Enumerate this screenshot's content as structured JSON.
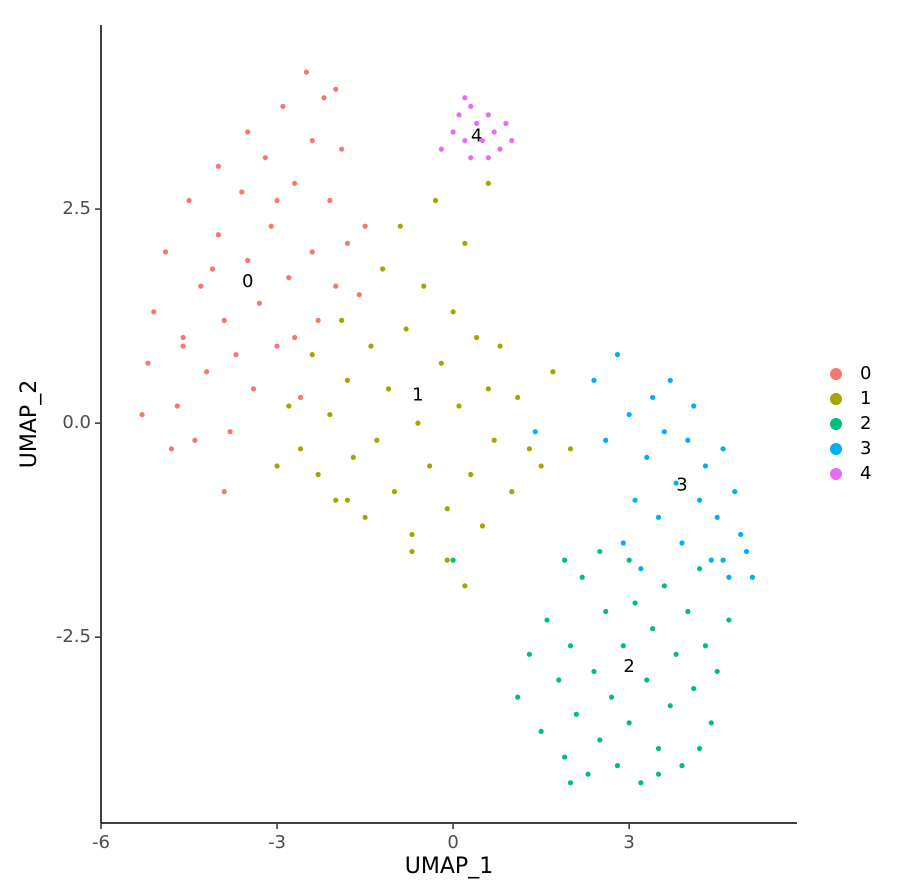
{
  "chart_data": {
    "type": "scatter",
    "xlabel": "UMAP_1",
    "ylabel": "UMAP_2",
    "xlim": [
      -6,
      5.86
    ],
    "ylim": [
      -4.67,
      4.65
    ],
    "xticks": [
      -6,
      -3,
      0,
      3
    ],
    "yticks": [
      -2.5,
      {
        "value": 0,
        "label": "0.0"
      },
      2.5
    ],
    "legend": "right",
    "series": [
      {
        "name": "0",
        "color": "#F8766D",
        "x": [
          -5.2,
          -5.1,
          -4.9,
          -4.7,
          -4.6,
          -4.5,
          -4.4,
          -4.3,
          -4.2,
          -4.0,
          -4.0,
          -3.9,
          -3.8,
          -3.7,
          -3.6,
          -3.5,
          -3.5,
          -3.4,
          -3.3,
          -3.2,
          -3.1,
          -3.0,
          -2.9,
          -2.8,
          -2.7,
          -2.6,
          -2.5,
          -2.4,
          -2.4,
          -2.3,
          -2.2,
          -2.1,
          -2.0,
          -1.9,
          -1.8,
          -1.6,
          -1.5,
          -5.3,
          -4.8,
          -3.9,
          -2.0,
          -4.1,
          -3.0,
          -2.7,
          -4.6
        ],
        "y": [
          0.7,
          1.3,
          2.0,
          0.2,
          1.0,
          2.6,
          -0.2,
          1.6,
          0.6,
          3.0,
          2.2,
          1.2,
          -0.1,
          0.8,
          2.7,
          3.4,
          1.9,
          0.4,
          1.4,
          3.1,
          2.3,
          0.9,
          3.7,
          1.7,
          2.8,
          0.3,
          4.1,
          3.3,
          2.0,
          1.2,
          3.8,
          2.6,
          1.6,
          3.2,
          2.1,
          1.5,
          2.3,
          0.1,
          -0.3,
          -0.8,
          3.9,
          1.8,
          2.6,
          1.0,
          0.9
        ]
      },
      {
        "name": "1",
        "color": "#A3A500",
        "x": [
          -3.0,
          -2.8,
          -2.6,
          -2.4,
          -2.3,
          -2.1,
          -2.0,
          -1.9,
          -1.8,
          -1.7,
          -1.5,
          -1.4,
          -1.3,
          -1.2,
          -1.1,
          -1.0,
          -0.9,
          -0.8,
          -0.7,
          -0.6,
          -0.5,
          -0.4,
          -0.3,
          -0.2,
          -0.1,
          0.0,
          0.1,
          0.2,
          0.3,
          0.4,
          0.5,
          0.6,
          0.7,
          0.8,
          1.0,
          1.1,
          1.3,
          1.5,
          1.7,
          2.0,
          -0.7,
          -0.1,
          0.2,
          -1.8,
          0.6
        ],
        "y": [
          -0.5,
          0.2,
          -0.3,
          0.8,
          -0.6,
          0.1,
          -0.9,
          1.2,
          0.5,
          -0.4,
          -1.1,
          0.9,
          -0.2,
          1.8,
          0.4,
          -0.8,
          2.3,
          1.1,
          -1.3,
          0.0,
          1.6,
          -0.5,
          2.6,
          0.7,
          -1.0,
          1.3,
          0.2,
          2.1,
          -0.6,
          1.0,
          -1.2,
          0.4,
          -0.2,
          0.9,
          -0.8,
          0.3,
          -0.3,
          -0.5,
          0.6,
          -0.3,
          -1.5,
          -1.6,
          -1.9,
          -0.9,
          2.8
        ]
      },
      {
        "name": "2",
        "color": "#00BF7D",
        "x": [
          1.1,
          1.3,
          1.5,
          1.6,
          1.8,
          1.9,
          2.0,
          2.1,
          2.2,
          2.3,
          2.4,
          2.5,
          2.6,
          2.7,
          2.8,
          2.9,
          3.0,
          3.0,
          3.1,
          3.2,
          3.3,
          3.4,
          3.5,
          3.6,
          3.7,
          3.8,
          3.9,
          4.0,
          4.1,
          4.2,
          4.3,
          4.4,
          4.5,
          4.7,
          2.5,
          1.9,
          0.0,
          3.5,
          2.0,
          4.2
        ],
        "y": [
          -3.2,
          -2.7,
          -3.6,
          -2.3,
          -3.0,
          -3.9,
          -2.6,
          -3.4,
          -1.8,
          -4.1,
          -2.9,
          -3.7,
          -2.2,
          -3.2,
          -4.0,
          -2.6,
          -1.6,
          -3.5,
          -2.1,
          -4.2,
          -3.0,
          -2.4,
          -3.8,
          -1.9,
          -3.3,
          -2.7,
          -4.0,
          -2.2,
          -3.1,
          -1.7,
          -2.6,
          -3.5,
          -2.9,
          -2.3,
          -1.5,
          -1.6,
          -1.6,
          -4.1,
          -4.2,
          -3.8
        ]
      },
      {
        "name": "3",
        "color": "#00B0F6",
        "x": [
          2.4,
          2.6,
          2.8,
          3.0,
          3.1,
          3.3,
          3.4,
          3.5,
          3.6,
          3.7,
          3.8,
          3.9,
          4.0,
          4.1,
          4.2,
          4.3,
          4.4,
          4.5,
          4.6,
          4.7,
          4.8,
          4.9,
          5.0,
          5.1,
          2.9,
          3.2,
          4.6,
          1.4
        ],
        "y": [
          0.5,
          -0.2,
          0.8,
          0.1,
          -0.9,
          -0.4,
          0.3,
          -1.1,
          -0.1,
          0.5,
          -0.7,
          -1.4,
          -0.2,
          0.2,
          -0.9,
          -0.5,
          -1.6,
          -1.1,
          -0.3,
          -1.8,
          -0.8,
          -1.3,
          -1.5,
          -1.8,
          -1.4,
          -1.7,
          -1.6,
          -0.1
        ]
      },
      {
        "name": "4",
        "color": "#E76BF3",
        "x": [
          -0.2,
          0.0,
          0.1,
          0.2,
          0.3,
          0.4,
          0.5,
          0.6,
          0.7,
          0.8,
          0.9,
          1.0,
          0.3,
          0.6,
          0.2
        ],
        "y": [
          3.2,
          3.4,
          3.6,
          3.3,
          3.7,
          3.5,
          3.3,
          3.6,
          3.4,
          3.2,
          3.5,
          3.3,
          3.1,
          3.1,
          3.8
        ]
      }
    ],
    "annotations": [
      {
        "text": "0",
        "x": -3.5,
        "y": 1.65
      },
      {
        "text": "1",
        "x": -0.6,
        "y": 0.32
      },
      {
        "text": "2",
        "x": 3.0,
        "y": -2.85
      },
      {
        "text": "3",
        "x": 3.9,
        "y": -0.73
      },
      {
        "text": "4",
        "x": 0.4,
        "y": 3.35
      }
    ]
  }
}
